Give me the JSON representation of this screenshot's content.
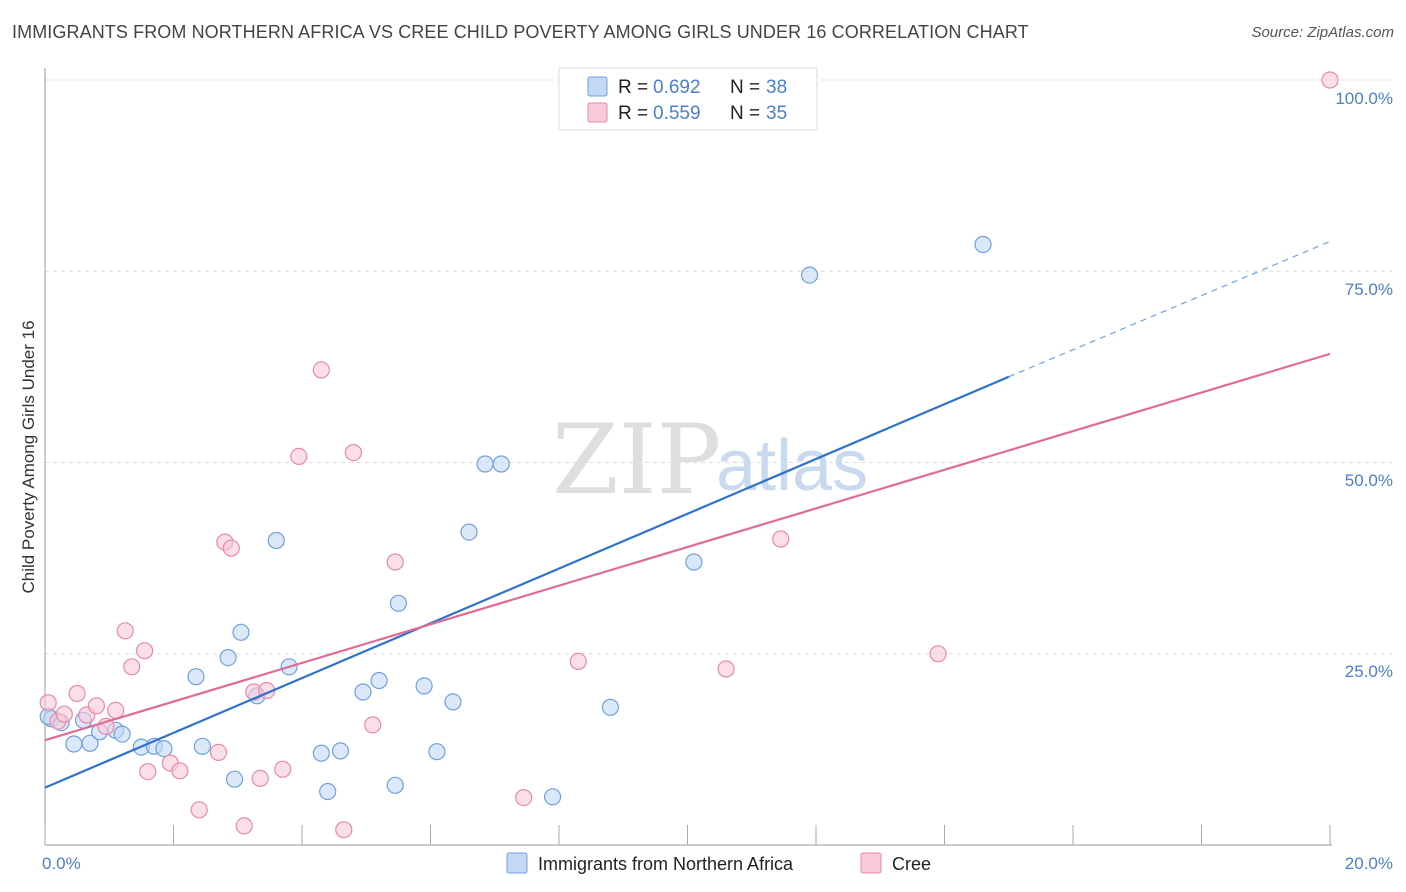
{
  "header": {
    "title": "IMMIGRANTS FROM NORTHERN AFRICA VS CREE CHILD POVERTY AMONG GIRLS UNDER 16 CORRELATION CHART",
    "source": "Source: ZipAtlas.com"
  },
  "watermark": {
    "zip": "ZIP",
    "atlas": "atlas"
  },
  "legend": {
    "rows": [
      {
        "r_label": "R =",
        "r_value": "0.692",
        "n_label": "N =",
        "n_value": "38"
      },
      {
        "r_label": "R =",
        "r_value": "0.559",
        "n_label": "N =",
        "n_value": "35"
      }
    ]
  },
  "chart_data": {
    "type": "scatter",
    "title": "IMMIGRANTS FROM NORTHERN AFRICA VS CREE CHILD POVERTY AMONG GIRLS UNDER 16 CORRELATION CHART",
    "xlabel": "",
    "ylabel": "Child Poverty Among Girls Under 16",
    "xlim": [
      0,
      20
    ],
    "ylim": [
      0,
      100
    ],
    "x_tick_labels": [
      "0.0%",
      "20.0%"
    ],
    "y_tick_labels": [
      "25.0%",
      "50.0%",
      "75.0%",
      "100.0%"
    ],
    "y_tick_values": [
      25,
      50,
      75,
      100
    ],
    "grid": true,
    "legend_position": "top-center",
    "series": [
      {
        "name": "Immigrants from Northern Africa",
        "color": "#6fa0de",
        "fill": "#c3d8f5",
        "r": 0.692,
        "n": 38,
        "trend": {
          "x0": 0,
          "y0": 7.5,
          "x1": 15,
          "y1": 61.2,
          "dash_to_x": 20,
          "dash_to_y": 78.9
        },
        "points": [
          [
            0.1,
            16.5
          ],
          [
            0.25,
            16
          ],
          [
            0.45,
            13.2
          ],
          [
            0.6,
            16.3
          ],
          [
            0.7,
            13.3
          ],
          [
            0.85,
            14.8
          ],
          [
            1.1,
            15
          ],
          [
            1.2,
            14.5
          ],
          [
            1.5,
            12.8
          ],
          [
            1.7,
            12.9
          ],
          [
            1.85,
            12.6
          ],
          [
            2.45,
            12.9
          ],
          [
            2.35,
            22
          ],
          [
            2.85,
            24.5
          ],
          [
            3.05,
            27.8
          ],
          [
            3.3,
            19.5
          ],
          [
            2.95,
            8.6
          ],
          [
            3.6,
            39.8
          ],
          [
            3.8,
            23.3
          ],
          [
            4.3,
            12
          ],
          [
            4.4,
            7
          ],
          [
            4.6,
            12.3
          ],
          [
            4.95,
            20
          ],
          [
            5.2,
            21.5
          ],
          [
            5.5,
            31.6
          ],
          [
            5.45,
            7.8
          ],
          [
            5.9,
            20.8
          ],
          [
            6.1,
            12.2
          ],
          [
            6.35,
            18.7
          ],
          [
            6.6,
            40.9
          ],
          [
            6.85,
            49.8
          ],
          [
            7.1,
            49.8
          ],
          [
            7.9,
            6.3
          ],
          [
            8.8,
            18
          ],
          [
            10.1,
            37
          ],
          [
            11.9,
            74.5
          ],
          [
            14.6,
            78.5
          ],
          [
            0.05,
            16.8
          ]
        ]
      },
      {
        "name": "Cree",
        "color": "#e88aa6",
        "fill": "#f8c9d8",
        "r": 0.559,
        "n": 35,
        "trend": {
          "x0": 0,
          "y0": 13.7,
          "x1": 20,
          "y1": 64.2
        },
        "points": [
          [
            0.05,
            18.6
          ],
          [
            0.2,
            16.2
          ],
          [
            0.3,
            17.1
          ],
          [
            0.5,
            19.8
          ],
          [
            0.65,
            17
          ],
          [
            0.8,
            18.2
          ],
          [
            0.95,
            15.5
          ],
          [
            1.1,
            17.6
          ],
          [
            1.25,
            28
          ],
          [
            1.35,
            23.3
          ],
          [
            1.55,
            25.4
          ],
          [
            1.6,
            9.6
          ],
          [
            1.95,
            10.7
          ],
          [
            2.1,
            9.7
          ],
          [
            2.4,
            4.6
          ],
          [
            2.7,
            12.1
          ],
          [
            2.8,
            39.6
          ],
          [
            2.9,
            38.8
          ],
          [
            3.1,
            2.5
          ],
          [
            3.25,
            20
          ],
          [
            3.35,
            8.7
          ],
          [
            3.45,
            20.2
          ],
          [
            3.7,
            9.9
          ],
          [
            3.95,
            50.8
          ],
          [
            4.3,
            62.1
          ],
          [
            4.65,
            2
          ],
          [
            4.8,
            51.3
          ],
          [
            5.1,
            15.7
          ],
          [
            5.45,
            37
          ],
          [
            7.45,
            6.2
          ],
          [
            8.3,
            24
          ],
          [
            10.6,
            23
          ],
          [
            11.45,
            40
          ],
          [
            13.9,
            25
          ],
          [
            20,
            100
          ]
        ]
      }
    ]
  }
}
